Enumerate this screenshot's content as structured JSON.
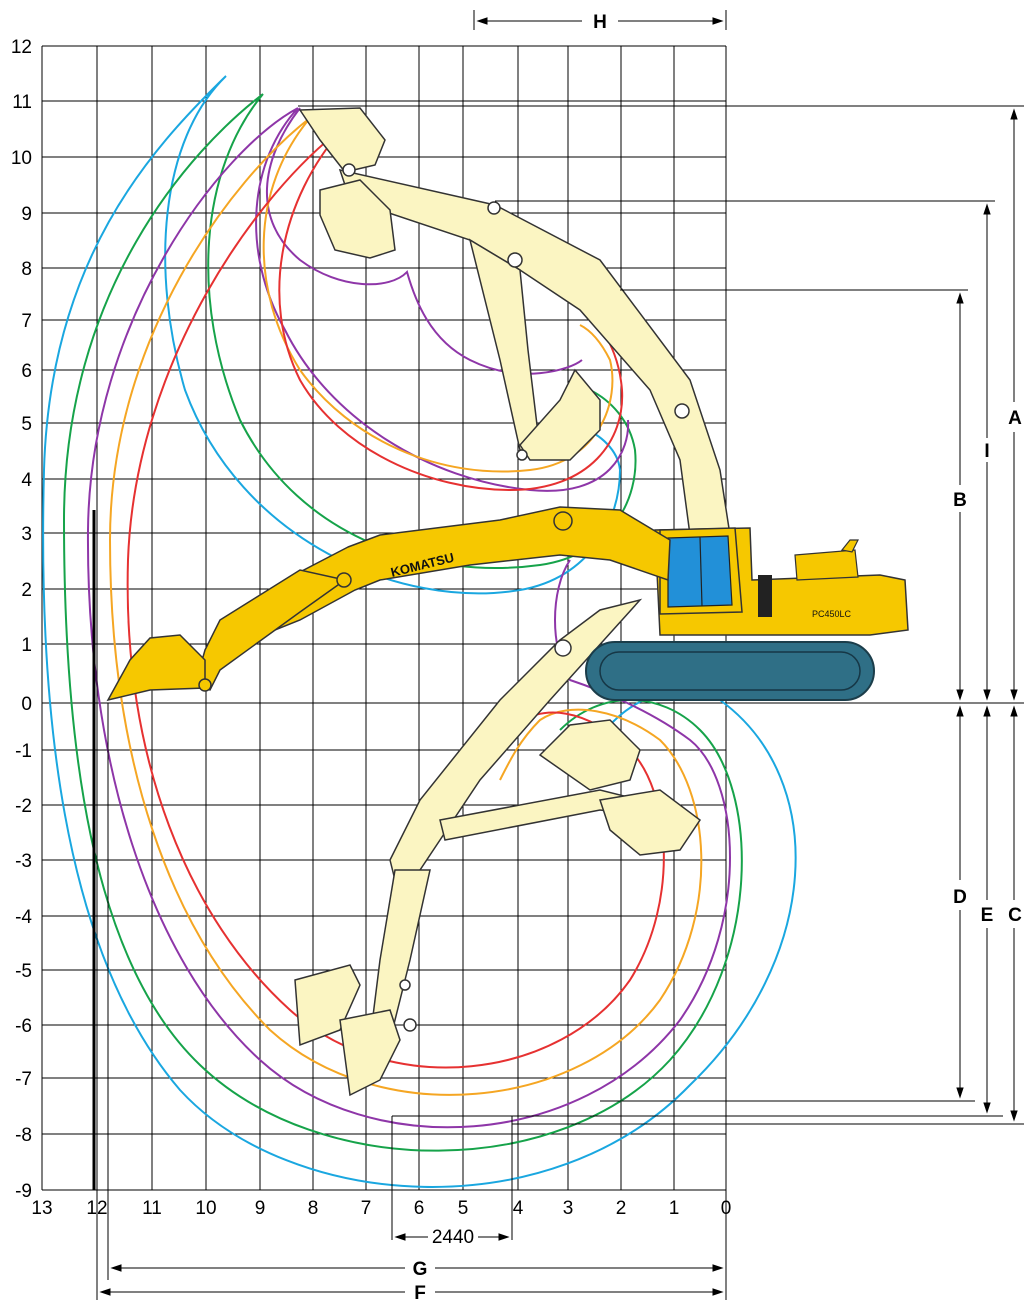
{
  "diagram": {
    "y_ticks": [
      "12",
      "11",
      "10",
      "9",
      "8",
      "7",
      "6",
      "5",
      "4",
      "3",
      "2",
      "1",
      "0",
      "-1",
      "-2",
      "-3",
      "-4",
      "-5",
      "-6",
      "-7",
      "-8",
      "-9"
    ],
    "x_ticks": [
      "13",
      "12",
      "11",
      "10",
      "9",
      "8",
      "7",
      "6",
      "5",
      "4",
      "3",
      "2",
      "1",
      "0"
    ],
    "dimension_labels": {
      "A": "A",
      "B": "B",
      "C": "C",
      "D": "D",
      "E": "E",
      "F": "F",
      "G": "G",
      "H": "H",
      "I": "I"
    },
    "track_width_label": "2440",
    "brand_text": "KOMATSU",
    "model_text": "PC450LC",
    "curve_colors": {
      "blue": "#1aa7e0",
      "green": "#16a34a",
      "purple": "#8e36a8",
      "orange": "#f5a623",
      "red": "#e63131"
    },
    "machine_colors": {
      "body": "#f6c800",
      "pale": "#fbf5c2",
      "track": "#2f6f86",
      "cab_glass": "#2290d8"
    }
  }
}
